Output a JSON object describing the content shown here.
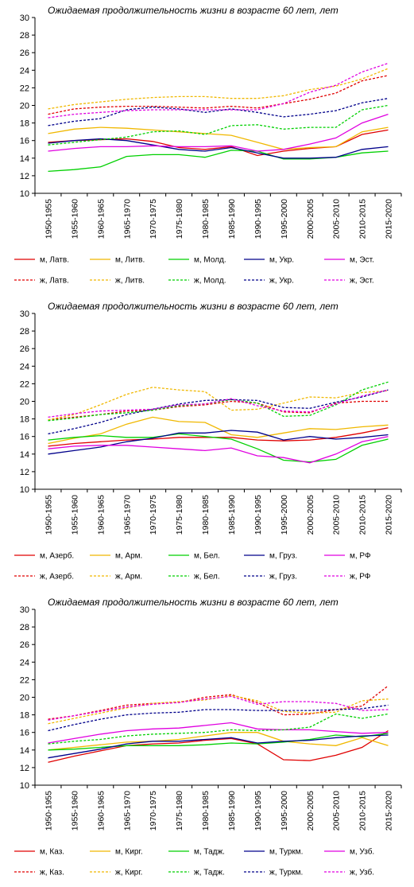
{
  "chart_data": [
    {
      "type": "line",
      "title": "Ожидаемая продолжительность жизни в возрасте 60 лет, лет",
      "xlabel": "",
      "ylabel": "",
      "ylim": [
        10,
        30
      ],
      "yticks": [
        10,
        12,
        14,
        16,
        18,
        20,
        22,
        24,
        26,
        28,
        30
      ],
      "categories": [
        "1950-1955",
        "1955-1960",
        "1960-1965",
        "1965-1970",
        "1970-1975",
        "1975-1980",
        "1980-1985",
        "1985-1990",
        "1990-1995",
        "1995-2000",
        "2000-2005",
        "2005-2010",
        "2010-2015",
        "2015-2020"
      ],
      "grid": "none",
      "legend": "bottom",
      "series": [
        {
          "name": "м, Латв.",
          "color": "#e00000",
          "dash": false,
          "values": [
            15.8,
            16.0,
            16.1,
            16.2,
            15.9,
            15.2,
            15.0,
            15.3,
            14.3,
            14.8,
            15.1,
            15.3,
            16.7,
            17.2
          ]
        },
        {
          "name": "м, Литв.",
          "color": "#f0b800",
          "dash": false,
          "values": [
            16.8,
            17.3,
            17.5,
            17.4,
            17.2,
            17.0,
            16.8,
            16.6,
            15.8,
            15.0,
            15.2,
            15.3,
            17.0,
            17.5
          ]
        },
        {
          "name": "м, Молд.",
          "color": "#00d000",
          "dash": false,
          "values": [
            12.5,
            12.7,
            13.0,
            14.2,
            14.4,
            14.4,
            14.1,
            14.9,
            14.8,
            13.9,
            13.9,
            14.1,
            14.6,
            14.8
          ]
        },
        {
          "name": "м, Укр.",
          "color": "#00008b",
          "dash": false,
          "values": [
            15.7,
            16.0,
            16.2,
            16.0,
            15.5,
            15.0,
            14.8,
            15.2,
            14.6,
            14.0,
            14.0,
            14.1,
            15.0,
            15.3
          ]
        },
        {
          "name": "м, Эст.",
          "color": "#e000e0",
          "dash": false,
          "values": [
            14.8,
            15.1,
            15.3,
            15.3,
            15.4,
            15.3,
            15.3,
            15.4,
            14.8,
            15.0,
            15.6,
            16.3,
            18.0,
            19.0
          ]
        },
        {
          "name": "ж, Латв.",
          "color": "#e00000",
          "dash": true,
          "values": [
            19.0,
            19.6,
            19.8,
            19.9,
            19.9,
            19.8,
            19.7,
            19.9,
            19.7,
            20.2,
            20.7,
            21.4,
            22.8,
            23.4
          ]
        },
        {
          "name": "ж, Литв.",
          "color": "#f0b800",
          "dash": true,
          "values": [
            19.6,
            20.1,
            20.4,
            20.7,
            20.9,
            21.0,
            21.0,
            20.8,
            20.8,
            21.1,
            21.8,
            22.2,
            23.0,
            24.2
          ]
        },
        {
          "name": "ж, Молд.",
          "color": "#00d000",
          "dash": true,
          "values": [
            15.5,
            15.8,
            16.1,
            16.4,
            17.0,
            17.1,
            16.7,
            17.7,
            17.8,
            17.3,
            17.5,
            17.5,
            19.5,
            20.0
          ]
        },
        {
          "name": "ж, Укр.",
          "color": "#00008b",
          "dash": true,
          "values": [
            17.7,
            18.2,
            18.5,
            19.5,
            19.8,
            19.6,
            19.2,
            19.6,
            19.2,
            18.7,
            19.0,
            19.4,
            20.3,
            20.8
          ]
        },
        {
          "name": "ж, Эст.",
          "color": "#e000e0",
          "dash": true,
          "values": [
            18.6,
            19.0,
            19.2,
            19.4,
            19.5,
            19.5,
            19.5,
            19.5,
            19.5,
            20.2,
            21.5,
            22.3,
            23.8,
            24.8
          ]
        }
      ]
    },
    {
      "type": "line",
      "title": "Ожидаемая продолжительность жизни в возрасте 60 лет, лет",
      "xlabel": "",
      "ylabel": "",
      "ylim": [
        10,
        30
      ],
      "yticks": [
        10,
        12,
        14,
        16,
        18,
        20,
        22,
        24,
        26,
        28,
        30
      ],
      "categories": [
        "1950-1955",
        "1955-1960",
        "1960-1965",
        "1965-1970",
        "1970-1975",
        "1975-1980",
        "1980-1985",
        "1985-1990",
        "1990-1995",
        "1995-2000",
        "2000-2005",
        "2005-2010",
        "2010-2015",
        "2015-2020"
      ],
      "grid": "none",
      "legend": "bottom",
      "series": [
        {
          "name": "м, Азерб.",
          "color": "#e00000",
          "dash": false,
          "values": [
            14.9,
            15.2,
            15.4,
            15.6,
            15.7,
            15.9,
            15.9,
            15.9,
            15.6,
            15.5,
            15.6,
            15.9,
            16.4,
            17.0
          ]
        },
        {
          "name": "м, Арм.",
          "color": "#f0b800",
          "dash": false,
          "values": [
            15.2,
            15.8,
            16.3,
            17.4,
            18.2,
            17.7,
            17.6,
            16.2,
            15.9,
            16.4,
            16.9,
            16.8,
            17.1,
            17.3
          ]
        },
        {
          "name": "м, Бел.",
          "color": "#00d000",
          "dash": false,
          "values": [
            15.6,
            15.9,
            16.1,
            15.9,
            15.9,
            16.3,
            16.0,
            15.7,
            14.6,
            13.3,
            13.1,
            13.4,
            15.0,
            15.7
          ]
        },
        {
          "name": "м, Груз.",
          "color": "#00008b",
          "dash": false,
          "values": [
            14.0,
            14.4,
            14.8,
            15.4,
            15.8,
            16.4,
            16.4,
            16.7,
            16.5,
            15.6,
            16.0,
            15.7,
            15.9,
            16.2
          ]
        },
        {
          "name": "м, РФ",
          "color": "#e000e0",
          "dash": false,
          "values": [
            14.6,
            14.9,
            15.0,
            15.0,
            14.8,
            14.6,
            14.4,
            14.7,
            13.8,
            13.6,
            13.0,
            14.0,
            15.4,
            16.0
          ]
        },
        {
          "name": "ж, Азерб.",
          "color": "#e00000",
          "dash": true,
          "values": [
            17.9,
            18.2,
            18.5,
            18.9,
            19.0,
            19.4,
            19.6,
            20.0,
            19.8,
            18.8,
            18.7,
            19.8,
            20.0,
            20.0
          ]
        },
        {
          "name": "ж, Арм.",
          "color": "#f0b800",
          "dash": true,
          "values": [
            17.9,
            18.5,
            19.6,
            20.8,
            21.6,
            21.3,
            21.1,
            19.0,
            19.1,
            19.8,
            20.5,
            20.4,
            21.0,
            21.2
          ]
        },
        {
          "name": "ж, Бел.",
          "color": "#00d000",
          "dash": true,
          "values": [
            17.8,
            18.1,
            18.5,
            18.7,
            19.0,
            19.5,
            19.7,
            20.2,
            19.8,
            18.3,
            18.4,
            19.6,
            21.3,
            22.2
          ]
        },
        {
          "name": "ж, Груз.",
          "color": "#00008b",
          "dash": true,
          "values": [
            16.3,
            16.9,
            17.6,
            18.5,
            19.1,
            19.7,
            20.1,
            20.2,
            20.1,
            19.3,
            19.2,
            19.9,
            20.5,
            21.3
          ]
        },
        {
          "name": "ж, РФ",
          "color": "#e000e0",
          "dash": true,
          "values": [
            18.2,
            18.6,
            18.9,
            19.0,
            19.1,
            19.6,
            19.7,
            20.3,
            19.5,
            18.9,
            18.8,
            19.7,
            20.6,
            21.3
          ]
        }
      ]
    },
    {
      "type": "line",
      "title": "Ожидаемая продолжительность жизни в возрасте 60 лет, лет",
      "xlabel": "",
      "ylabel": "",
      "ylim": [
        10,
        30
      ],
      "yticks": [
        10,
        12,
        14,
        16,
        18,
        20,
        22,
        24,
        26,
        28,
        30
      ],
      "categories": [
        "1950-1955",
        "1955-1960",
        "1960-1965",
        "1965-1970",
        "1970-1975",
        "1975-1980",
        "1980-1985",
        "1985-1990",
        "1990-1995",
        "1995-2000",
        "2000-2005",
        "2005-2010",
        "2010-2015",
        "2015-2020"
      ],
      "grid": "none",
      "legend": "bottom",
      "series": [
        {
          "name": "м, Каз.",
          "color": "#e00000",
          "dash": false,
          "values": [
            12.6,
            13.3,
            13.9,
            14.5,
            14.7,
            14.8,
            15.1,
            15.3,
            14.7,
            12.9,
            12.8,
            13.4,
            14.3,
            16.2
          ]
        },
        {
          "name": "м, Кирг.",
          "color": "#f0b800",
          "dash": false,
          "values": [
            14.0,
            14.3,
            14.6,
            14.9,
            15.0,
            15.2,
            15.6,
            16.0,
            16.0,
            15.0,
            14.7,
            14.5,
            15.4,
            14.5
          ]
        },
        {
          "name": "м, Тадж.",
          "color": "#00d000",
          "dash": false,
          "values": [
            14.0,
            14.1,
            14.3,
            14.5,
            14.5,
            14.5,
            14.6,
            14.8,
            14.7,
            14.9,
            15.2,
            15.7,
            15.5,
            15.9
          ]
        },
        {
          "name": "м, Туркм.",
          "color": "#00008b",
          "dash": false,
          "values": [
            13.1,
            13.6,
            14.1,
            14.7,
            15.0,
            15.0,
            15.2,
            15.4,
            14.8,
            15.0,
            15.1,
            15.4,
            15.6,
            15.7
          ]
        },
        {
          "name": "м, Узб.",
          "color": "#e000e0",
          "dash": false,
          "values": [
            14.8,
            15.3,
            15.8,
            16.2,
            16.4,
            16.5,
            16.8,
            17.1,
            16.4,
            16.3,
            16.3,
            16.1,
            15.9,
            16.0
          ]
        },
        {
          "name": "ж, Каз.",
          "color": "#e00000",
          "dash": true,
          "values": [
            17.5,
            17.9,
            18.5,
            19.1,
            19.3,
            19.4,
            20.0,
            20.3,
            19.4,
            18.0,
            18.1,
            18.6,
            19.0,
            21.3
          ]
        },
        {
          "name": "ж, Кирг.",
          "color": "#f0b800",
          "dash": true,
          "values": [
            17.0,
            17.6,
            18.2,
            18.8,
            19.3,
            19.5,
            19.7,
            20.2,
            19.6,
            18.4,
            18.2,
            18.3,
            19.6,
            19.8
          ]
        },
        {
          "name": "ж, Тадж.",
          "color": "#00d000",
          "dash": true,
          "values": [
            14.7,
            15.0,
            15.2,
            15.6,
            15.8,
            15.9,
            16.0,
            16.3,
            16.2,
            16.3,
            16.6,
            18.1,
            17.6,
            18.1
          ]
        },
        {
          "name": "ж, Туркм.",
          "color": "#00008b",
          "dash": true,
          "values": [
            16.2,
            16.9,
            17.5,
            18.0,
            18.2,
            18.3,
            18.6,
            18.6,
            18.5,
            18.5,
            18.5,
            18.6,
            18.7,
            19.1
          ]
        },
        {
          "name": "ж, Узб.",
          "color": "#e000e0",
          "dash": true,
          "values": [
            17.4,
            17.9,
            18.4,
            18.9,
            19.2,
            19.4,
            19.8,
            20.1,
            19.2,
            19.5,
            19.5,
            19.3,
            18.5,
            18.6
          ]
        }
      ]
    }
  ]
}
